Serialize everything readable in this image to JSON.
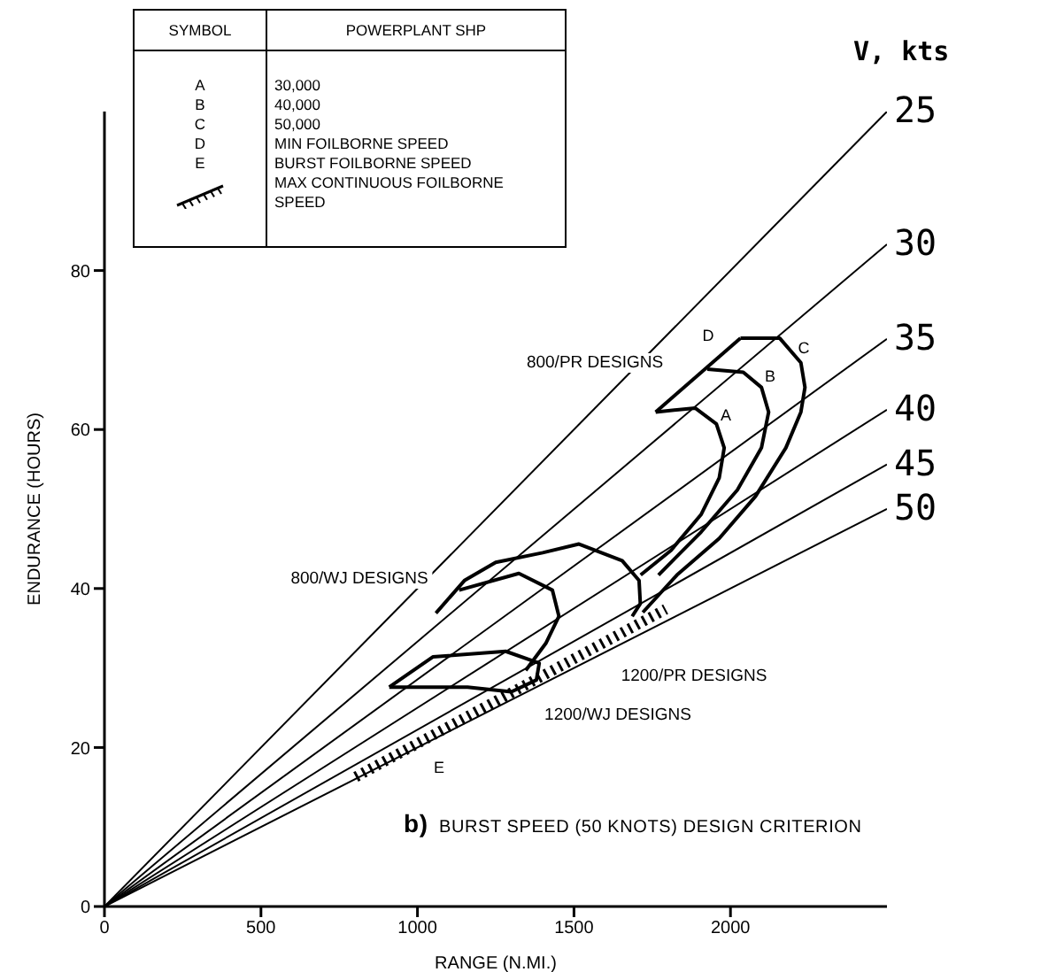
{
  "chart_data": {
    "type": "line",
    "xlabel": "RANGE (N.MI.)",
    "ylabel": "ENDURANCE (HOURS)",
    "legend_title": "V, kts",
    "xlim": [
      0,
      2500
    ],
    "ylim": [
      0,
      100
    ],
    "xticks": [
      0,
      500,
      1000,
      1500,
      2000
    ],
    "yticks": [
      0,
      20,
      40,
      60,
      80
    ],
    "marker": "none",
    "line_style": "solid",
    "series": [
      {
        "name": "25",
        "color": "#000000",
        "x": [
          0,
          2500
        ],
        "values": [
          0,
          100
        ]
      },
      {
        "name": "30",
        "color": "#000000",
        "x": [
          0,
          2500
        ],
        "values": [
          0,
          83.3
        ]
      },
      {
        "name": "35",
        "color": "#000000",
        "x": [
          0,
          2500
        ],
        "values": [
          0,
          71.4
        ]
      },
      {
        "name": "40",
        "color": "#000000",
        "x": [
          0,
          2500
        ],
        "values": [
          0,
          62.5
        ]
      },
      {
        "name": "45",
        "color": "#000000",
        "x": [
          0,
          2500
        ],
        "values": [
          0,
          55.6
        ]
      },
      {
        "name": "50",
        "color": "#000000",
        "x": [
          0,
          2500
        ],
        "values": [
          0,
          50
        ]
      },
      {
        "color": "#000000",
        "x": [
          1761,
          2032
        ],
        "values": [
          62.2,
          71.5
        ]
      },
      {
        "color": "#000000",
        "x": [
          1761,
          1887,
          1955,
          1980,
          1964,
          1906,
          1810,
          1713
        ],
        "values": [
          62.2,
          62.7,
          60.7,
          57.7,
          53.9,
          49.3,
          44.8,
          41.7
        ]
      },
      {
        "color": "#000000",
        "x": [
          1926,
          2041,
          2099,
          2122,
          2099,
          2022,
          1906,
          1770
        ],
        "values": [
          67.6,
          67.2,
          65.3,
          62.2,
          57.7,
          52.4,
          47.1,
          41.7
        ]
      },
      {
        "color": "#000000",
        "x": [
          2032,
          2157,
          2225,
          2238,
          2225,
          2177,
          2080,
          1964,
          1829,
          1720
        ],
        "values": [
          71.5,
          71.5,
          68.4,
          65.3,
          62.2,
          57.7,
          51.6,
          46.3,
          41.7,
          37
        ]
      },
      {
        "color": "#000000",
        "x": [
          1059,
          1150,
          1250,
          1400,
          1516,
          1654,
          1708,
          1712,
          1686
        ],
        "values": [
          36.9,
          41,
          43.3,
          44.5,
          45.6,
          43.5,
          41,
          38.1,
          36.5
        ]
      },
      {
        "color": "#000000",
        "x": [
          1133,
          1324,
          1431,
          1452,
          1410,
          1346
        ],
        "values": [
          39.8,
          41.9,
          39.8,
          36.5,
          33.1,
          29.7
        ]
      },
      {
        "color": "#000000",
        "x": [
          910,
          1049,
          1282,
          1389,
          1380,
          1300
        ],
        "values": [
          27.6,
          31.4,
          32.1,
          30.6,
          28.5,
          27
        ]
      },
      {
        "color": "#000000",
        "x": [
          910,
          1160,
          1300
        ],
        "values": [
          27.6,
          27.6,
          27
        ]
      },
      {
        "color": "#000000",
        "x": [
          803,
          1793
        ],
        "values": [
          16.3,
          37.4
        ],
        "line_style": "dotted"
      }
    ],
    "annotations": [
      "SYMBOL",
      "POWERPLANT SHP",
      "A",
      "30,000",
      "B",
      "40,000",
      "C",
      "50,000",
      "D",
      "MIN FOILBORNE SPEED",
      "E",
      "BURST FOILBORNE SPEED",
      "MAX CONTINUOUS FOILBORNE SPEED",
      "b)  BURST SPEED (50 KNOTS) DESIGN CRITERION",
      "800/PR DESIGNS",
      "800/WJ DESIGNS",
      "1200/PR DESIGNS",
      "1200/WJ DESIGNS",
      "A",
      "B",
      "C",
      "D",
      "E"
    ]
  }
}
